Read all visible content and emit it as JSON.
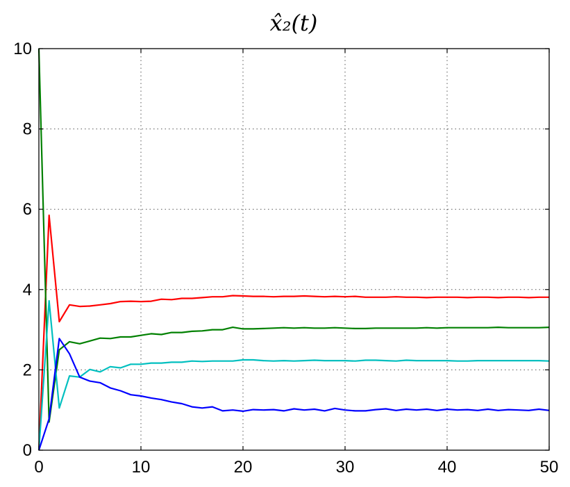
{
  "chart_data": {
    "type": "line",
    "title": "x̂₂(t)",
    "xlabel": "",
    "ylabel": "",
    "xlim": [
      0,
      50
    ],
    "ylim": [
      0,
      10
    ],
    "xticks": [
      0,
      10,
      20,
      30,
      40,
      50
    ],
    "yticks": [
      0,
      2,
      4,
      6,
      8,
      10
    ],
    "xtick_labels": [
      "0",
      "10",
      "20",
      "30",
      "40",
      "50"
    ],
    "ytick_labels": [
      "0",
      "2",
      "4",
      "6",
      "8",
      "10"
    ],
    "grid": true,
    "x": [
      0,
      1,
      2,
      3,
      4,
      5,
      6,
      7,
      8,
      9,
      10,
      11,
      12,
      13,
      14,
      15,
      16,
      17,
      18,
      19,
      20,
      21,
      22,
      23,
      24,
      25,
      26,
      27,
      28,
      29,
      30,
      31,
      32,
      33,
      34,
      35,
      36,
      37,
      38,
      39,
      40,
      41,
      42,
      43,
      44,
      45,
      46,
      47,
      48,
      49,
      50
    ],
    "series": [
      {
        "color": "#ff0000",
        "values": [
          0,
          5.85,
          3.2,
          3.62,
          3.58,
          3.59,
          3.62,
          3.65,
          3.7,
          3.71,
          3.7,
          3.71,
          3.76,
          3.75,
          3.78,
          3.78,
          3.8,
          3.82,
          3.82,
          3.85,
          3.84,
          3.83,
          3.83,
          3.82,
          3.83,
          3.83,
          3.84,
          3.83,
          3.82,
          3.83,
          3.82,
          3.83,
          3.81,
          3.81,
          3.81,
          3.82,
          3.81,
          3.81,
          3.8,
          3.81,
          3.81,
          3.81,
          3.8,
          3.81,
          3.81,
          3.8,
          3.81,
          3.81,
          3.8,
          3.81,
          3.81
        ]
      },
      {
        "color": "#008000",
        "values": [
          10,
          0.7,
          2.5,
          2.7,
          2.65,
          2.72,
          2.79,
          2.78,
          2.82,
          2.82,
          2.86,
          2.9,
          2.88,
          2.93,
          2.93,
          2.96,
          2.97,
          3,
          3,
          3.06,
          3.02,
          3.02,
          3.03,
          3.04,
          3.05,
          3.04,
          3.05,
          3.04,
          3.04,
          3.05,
          3.04,
          3.03,
          3.03,
          3.04,
          3.04,
          3.04,
          3.04,
          3.04,
          3.05,
          3.04,
          3.05,
          3.05,
          3.05,
          3.05,
          3.05,
          3.06,
          3.05,
          3.05,
          3.05,
          3.05,
          3.06
        ]
      },
      {
        "color": "#00bfbf",
        "values": [
          0,
          3.72,
          1.05,
          1.85,
          1.82,
          2.01,
          1.95,
          2.08,
          2.05,
          2.14,
          2.14,
          2.17,
          2.17,
          2.19,
          2.19,
          2.22,
          2.21,
          2.22,
          2.22,
          2.22,
          2.25,
          2.25,
          2.23,
          2.22,
          2.23,
          2.22,
          2.23,
          2.24,
          2.23,
          2.23,
          2.23,
          2.22,
          2.24,
          2.24,
          2.23,
          2.22,
          2.24,
          2.23,
          2.23,
          2.23,
          2.23,
          2.22,
          2.22,
          2.23,
          2.23,
          2.23,
          2.23,
          2.23,
          2.23,
          2.23,
          2.22
        ]
      },
      {
        "color": "#0000ff",
        "values": [
          0,
          0.78,
          2.78,
          2.4,
          1.82,
          1.72,
          1.68,
          1.55,
          1.48,
          1.38,
          1.35,
          1.3,
          1.26,
          1.2,
          1.16,
          1.08,
          1.05,
          1.08,
          0.98,
          1.0,
          0.97,
          1.01,
          1.0,
          1.01,
          0.98,
          1.03,
          1.0,
          1.02,
          0.98,
          1.04,
          1.0,
          0.98,
          0.98,
          1.01,
          1.03,
          0.99,
          1.02,
          1.0,
          1.02,
          0.99,
          1.02,
          1.0,
          1.01,
          0.99,
          1.02,
          0.99,
          1.01,
          1.0,
          0.99,
          1.02,
          0.99
        ]
      }
    ]
  }
}
